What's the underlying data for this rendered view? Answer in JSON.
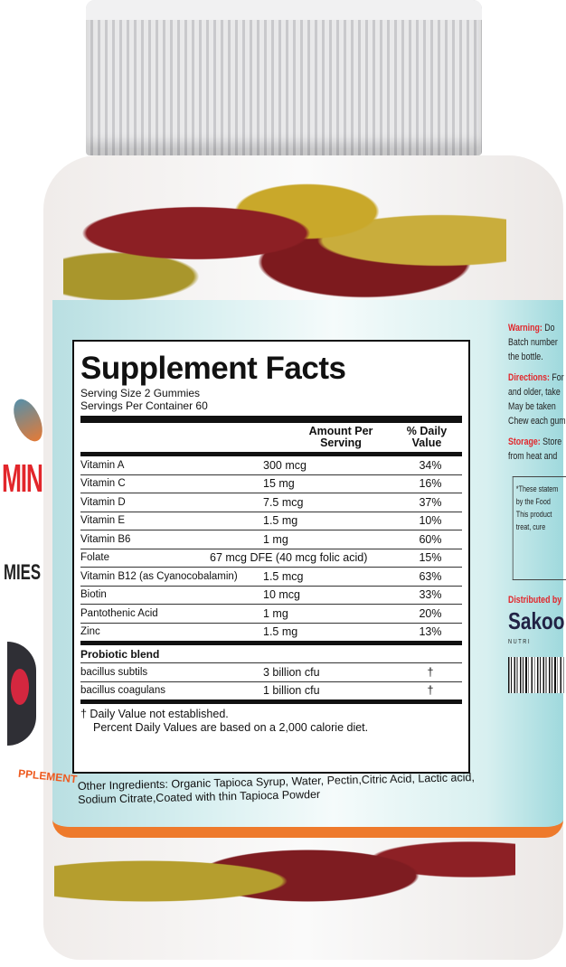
{
  "product": {
    "brand_left_title": "MIN",
    "brand_left_subtitle": "MIES",
    "brand_left_supplement": "PPLEMENT"
  },
  "facts": {
    "title": "Supplement Facts",
    "serving_size": "Serving Size 2 Gummies",
    "servings_per_container": "Servings Per Container 60",
    "col_amount": "Amount Per Serving",
    "col_dv": "% Daily Value",
    "nutrients": [
      {
        "name": "Vitamin A",
        "amount": "300 mcg",
        "dv": "34%"
      },
      {
        "name": "Vitamin C",
        "amount": "15 mg",
        "dv": "16%"
      },
      {
        "name": "Vitamin D",
        "amount": "7.5 mcg",
        "dv": "37%"
      },
      {
        "name": "Vitamin E",
        "amount": "1.5 mg",
        "dv": "10%"
      },
      {
        "name": "Vitamin B6",
        "amount": "1 mg",
        "dv": "60%"
      },
      {
        "name": "Folate",
        "amount": "67 mcg DFE (40 mcg folic acid)",
        "dv": "15%"
      },
      {
        "name": "Vitamin B12 (as Cyanocobalamin)",
        "amount": "1.5 mcg",
        "dv": "63%"
      },
      {
        "name": "Biotin",
        "amount": "10 mcg",
        "dv": "33%"
      },
      {
        "name": "Pantothenic Acid",
        "amount": "1 mg",
        "dv": "20%"
      },
      {
        "name": "Zinc",
        "amount": "1.5 mg",
        "dv": "13%"
      }
    ],
    "probiotic_title": "Probiotic blend",
    "probiotics": [
      {
        "name": "bacillus subtils",
        "amount": "3 billion cfu",
        "dv": "†"
      },
      {
        "name": "bacillus coagulans",
        "amount": "1 billion cfu",
        "dv": "†"
      }
    ],
    "footnote_1": "† Daily Value not established.",
    "footnote_2": "Percent Daily Values are based on a 2,000 calorie diet."
  },
  "other_ingredients": "Other Ingredients: Organic Tapioca Syrup, Water, Pectin,Citric Acid, Lactic acid, Sodium Citrate,Coated with thin Tapioca Powder",
  "side": {
    "warning_label": "Warning:",
    "warning_text": "Do",
    "warning_line2": "Batch number",
    "warning_line3": "the bottle.",
    "directions_label": "Directions:",
    "directions_text": "For",
    "directions_line2": "and older, take",
    "directions_line3": "May be taken",
    "directions_line4": "Chew each gum",
    "storage_label": "Storage:",
    "storage_text": "Store",
    "storage_line2": "from heat and",
    "statement_1": "*These statem",
    "statement_2": "by the Food",
    "statement_3": "This product",
    "statement_4": "treat, cure",
    "distributed": "Distributed by",
    "logo": "Sakoo",
    "logo_sub": "NUTRI"
  },
  "colors": {
    "accent_red": "#e2262b",
    "label_teal": "#b9dfe2",
    "orange_band": "#ee7a2c"
  }
}
